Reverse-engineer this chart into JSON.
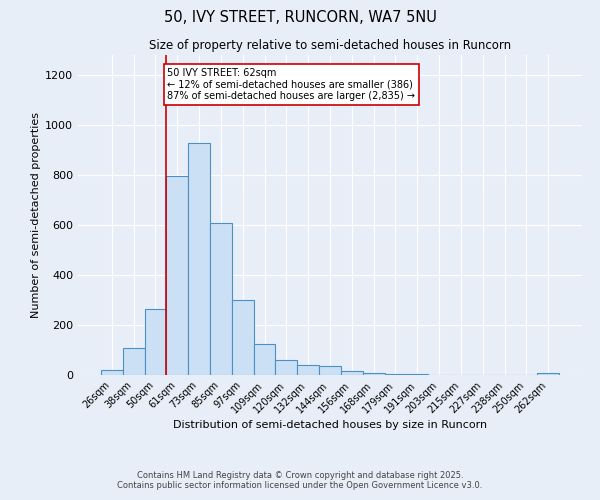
{
  "title1": "50, IVY STREET, RUNCORN, WA7 5NU",
  "title2": "Size of property relative to semi-detached houses in Runcorn",
  "xlabel": "Distribution of semi-detached houses by size in Runcorn",
  "ylabel": "Number of semi-detached properties",
  "categories": [
    "26sqm",
    "38sqm",
    "50sqm",
    "61sqm",
    "73sqm",
    "85sqm",
    "97sqm",
    "109sqm",
    "120sqm",
    "132sqm",
    "144sqm",
    "156sqm",
    "168sqm",
    "179sqm",
    "191sqm",
    "203sqm",
    "215sqm",
    "227sqm",
    "238sqm",
    "250sqm",
    "262sqm"
  ],
  "values": [
    20,
    110,
    265,
    795,
    930,
    610,
    300,
    125,
    60,
    40,
    35,
    15,
    8,
    5,
    3,
    2,
    2,
    1,
    1,
    1,
    8
  ],
  "bar_color": "#cce0f5",
  "bar_edge_color": "#4a90c4",
  "red_line_index": 3,
  "annotation_text": "50 IVY STREET: 62sqm\n← 12% of semi-detached houses are smaller (386)\n87% of semi-detached houses are larger (2,835) →",
  "annotation_box_color": "#ffffff",
  "annotation_box_edge_color": "#cc0000",
  "footer1": "Contains HM Land Registry data © Crown copyright and database right 2025.",
  "footer2": "Contains public sector information licensed under the Open Government Licence v3.0.",
  "ylim": [
    0,
    1280
  ],
  "bg_color": "#e8eef8",
  "grid_color": "#ffffff"
}
